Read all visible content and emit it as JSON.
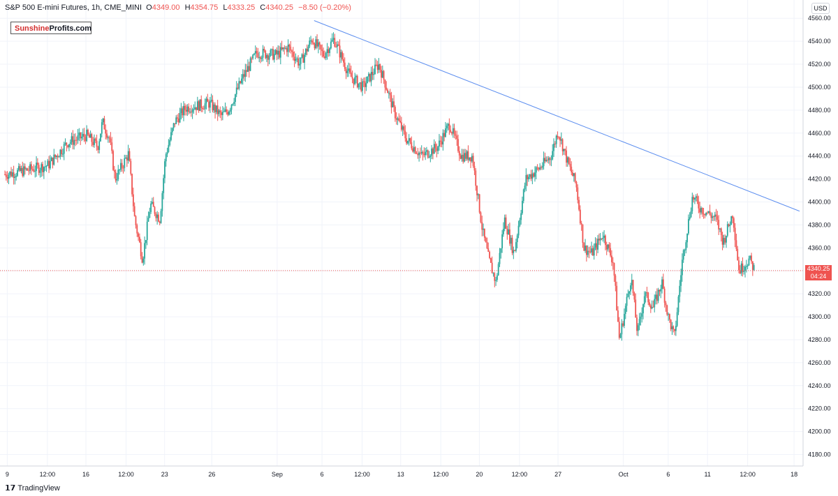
{
  "header": {
    "symbol": "S&P 500 E-mini Futures, 1h, CME_MINI",
    "open_label": "O",
    "open_value": "4349.00",
    "high_label": "H",
    "high_value": "4354.75",
    "low_label": "L",
    "low_value": "4333.25",
    "close_label": "C",
    "close_value": "4340.25",
    "change": "−8.50 (−0.20%)"
  },
  "currency_badge": "USD",
  "logo": {
    "part1": "Sunshine",
    "part2": "Profits.com"
  },
  "last_price": {
    "price": "4340.25",
    "countdown": "04:24"
  },
  "branding": "TradingView",
  "colors": {
    "up": "#26a69a",
    "down": "#ef5350",
    "trendline": "#5b8def",
    "price_line": "#ef5350",
    "grid": "#f0f3fa",
    "axis_text": "#131722"
  },
  "chart_data": {
    "type": "candlestick",
    "instrument": "S&P 500 E-mini Futures",
    "interval": "1h",
    "ylim": [
      4170,
      4565
    ],
    "y_ticks": [
      4180,
      4200,
      4220,
      4240,
      4260,
      4280,
      4300,
      4320,
      4340,
      4360,
      4380,
      4400,
      4420,
      4440,
      4460,
      4480,
      4500,
      4520,
      4540,
      4560
    ],
    "x_ticks": [
      "9",
      "12:00",
      "16",
      "12:00",
      "23",
      "26",
      "Sep",
      "6",
      "12:00",
      "13",
      "12:00",
      "20",
      "12:00",
      "27",
      "Oct",
      "6",
      "11",
      "12:00",
      "18"
    ],
    "x_tick_pos": [
      0.3,
      5.4,
      10.3,
      15.4,
      20.3,
      26.3,
      34.6,
      40.3,
      45.4,
      50.3,
      55.4,
      60.3,
      65.4,
      70.3,
      78.6,
      84.3,
      89.3,
      94.4,
      100.3
    ],
    "x_range": [
      0,
      101
    ],
    "price_path": [
      [
        0,
        4424
      ],
      [
        3,
        4428
      ],
      [
        5.5,
        4432
      ],
      [
        8,
        4452
      ],
      [
        10.4,
        4458
      ],
      [
        11.8,
        4448
      ],
      [
        12.4,
        4470
      ],
      [
        13.3,
        4455
      ],
      [
        14,
        4420
      ],
      [
        15.7,
        4442
      ],
      [
        16.5,
        4385
      ],
      [
        17.5,
        4350
      ],
      [
        18.5,
        4398
      ],
      [
        19.7,
        4385
      ],
      [
        20.4,
        4440
      ],
      [
        21.6,
        4470
      ],
      [
        23,
        4482
      ],
      [
        26,
        4486
      ],
      [
        27.5,
        4475
      ],
      [
        28.4,
        4480
      ],
      [
        30.2,
        4508
      ],
      [
        32,
        4530
      ],
      [
        34.5,
        4528
      ],
      [
        36,
        4535
      ],
      [
        37.5,
        4520
      ],
      [
        39,
        4542
      ],
      [
        40.5,
        4528
      ],
      [
        41.8,
        4542
      ],
      [
        43.8,
        4510
      ],
      [
        45.5,
        4500
      ],
      [
        47.5,
        4520
      ],
      [
        48.5,
        4500
      ],
      [
        49.5,
        4478
      ],
      [
        51,
        4455
      ],
      [
        53,
        4440
      ],
      [
        55,
        4448
      ],
      [
        56.5,
        4468
      ],
      [
        58,
        4440
      ],
      [
        59.4,
        4440
      ],
      [
        60.7,
        4375
      ],
      [
        61.5,
        4350
      ],
      [
        62.4,
        4330
      ],
      [
        63.5,
        4385
      ],
      [
        64.7,
        4355
      ],
      [
        66.2,
        4420
      ],
      [
        68,
        4430
      ],
      [
        69.4,
        4440
      ],
      [
        70.3,
        4462
      ],
      [
        71.5,
        4435
      ],
      [
        72.6,
        4415
      ],
      [
        73.6,
        4360
      ],
      [
        74.6,
        4355
      ],
      [
        76,
        4372
      ],
      [
        77.3,
        4348
      ],
      [
        78.1,
        4280
      ],
      [
        79.6,
        4335
      ],
      [
        80.4,
        4285
      ],
      [
        81.3,
        4320
      ],
      [
        82.4,
        4308
      ],
      [
        83.5,
        4330
      ],
      [
        84.3,
        4300
      ],
      [
        85.1,
        4282
      ],
      [
        86.1,
        4350
      ],
      [
        87.4,
        4405
      ],
      [
        88.3,
        4395
      ],
      [
        89.4,
        4390
      ],
      [
        90.4,
        4385
      ],
      [
        91.3,
        4365
      ],
      [
        92.5,
        4390
      ],
      [
        93.3,
        4340
      ],
      [
        94.6,
        4350
      ],
      [
        95.2,
        4342
      ]
    ],
    "trendline": {
      "start": [
        39.3,
        4558
      ],
      "end": [
        101,
        4392
      ]
    },
    "last_price": 4340.25
  }
}
